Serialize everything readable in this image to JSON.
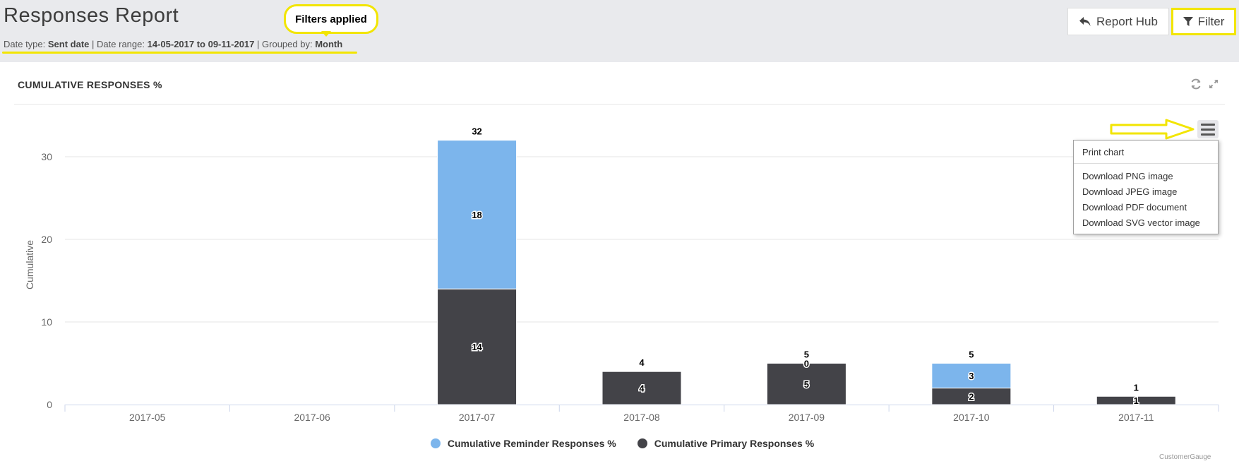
{
  "header": {
    "title": "Responses Report",
    "subtitle": {
      "date_type_label": "Date type:",
      "date_type_value": "Sent date",
      "sep1": "|",
      "date_range_label": "Date range:",
      "date_range_value": "14-05-2017 to 09-11-2017",
      "sep2": "|",
      "grouped_label": "Grouped by:",
      "grouped_value": "Month"
    },
    "annotation": "Filters applied",
    "buttons": {
      "report_hub": "Report Hub",
      "filter": "Filter"
    }
  },
  "panel": {
    "title": "CUMULATIVE RESPONSES %",
    "icons": [
      "refresh-icon",
      "expand-icon",
      "hamburger-menu-icon"
    ]
  },
  "export_menu": {
    "items": [
      "Print chart",
      "Download PNG image",
      "Download JPEG image",
      "Download PDF document",
      "Download SVG vector image"
    ]
  },
  "colors": {
    "reminder": "#7cb5ec",
    "primary": "#434348",
    "highlight": "#f2e500",
    "header_bg": "#e9eaed"
  },
  "chart_data": {
    "type": "bar",
    "stacked": true,
    "categories": [
      "2017-05",
      "2017-06",
      "2017-07",
      "2017-08",
      "2017-09",
      "2017-10",
      "2017-11"
    ],
    "series": [
      {
        "name": "Cumulative Reminder Responses %",
        "color": "#7cb5ec",
        "values": [
          null,
          null,
          18,
          null,
          0,
          3,
          null
        ]
      },
      {
        "name": "Cumulative Primary Responses %",
        "color": "#434348",
        "values": [
          null,
          null,
          14,
          4,
          5,
          2,
          1
        ]
      }
    ],
    "totals": [
      null,
      null,
      32,
      4,
      5,
      5,
      1
    ],
    "ylabel": "Cumulative",
    "ylim": [
      0,
      35
    ],
    "yticks": [
      0,
      10,
      20,
      30
    ],
    "grid": true,
    "legend": "bottom-center"
  },
  "credits": "CustomerGauge"
}
